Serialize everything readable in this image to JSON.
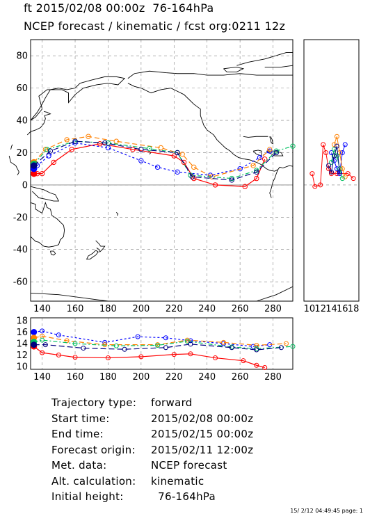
{
  "header": {
    "line1": "ft 2015/02/08 00:00z  76-164hPa",
    "line2": "NCEP forecast / kinematic / fcst org:0211 12z"
  },
  "info": {
    "rows": [
      {
        "label": "Trajectory type:",
        "value": "forward"
      },
      {
        "label": "Start time:",
        "value": "2015/02/08 00:00z"
      },
      {
        "label": "End time:",
        "value": "2015/02/15 00:00z"
      },
      {
        "label": "Forecast origin:",
        "value": "2015/02/11 12:00z"
      },
      {
        "label": "Met. data:",
        "value": "NCEP forecast"
      },
      {
        "label": "Alt. calculation:",
        "value": "kinematic"
      },
      {
        "label": "Initial height:",
        "value": "  76-164hPa"
      }
    ]
  },
  "footer": "15/ 2/12 04:49:45 page: 1",
  "colors": {
    "red": "#ff0000",
    "blue": "#0000ff",
    "orange": "#ff8000",
    "green": "#00c060",
    "navy": "#000080",
    "grid": "#808080"
  },
  "chart_data": [
    {
      "type": "line",
      "panel": "map",
      "xlim": [
        133,
        292
      ],
      "ylim": [
        -72,
        90
      ],
      "xticks": [
        "140",
        "160",
        "180",
        "200",
        "220",
        "240",
        "260",
        "280"
      ],
      "yticks": [
        "-60",
        "-40",
        "-20",
        "0",
        "20",
        "40",
        "60",
        "80"
      ],
      "series": [
        {
          "color": "red",
          "dash": false,
          "points": [
            [
              135,
              7
            ],
            [
              137,
              7
            ],
            [
              140,
              7
            ],
            [
              147,
              14
            ],
            [
              158,
              22
            ],
            [
              175,
              25.5
            ],
            [
              195,
              22
            ],
            [
              220,
              18
            ],
            [
              226,
              14
            ],
            [
              232,
              4
            ],
            [
              245,
              0
            ],
            [
              263,
              -1
            ],
            [
              270,
              4
            ],
            [
              275,
              16
            ]
          ]
        },
        {
          "color": "blue",
          "dash": "3,3",
          "points": [
            [
              135,
              10
            ],
            [
              137,
              12
            ],
            [
              144,
              18
            ],
            [
              160,
              26
            ],
            [
              180,
              23
            ],
            [
              200,
              15
            ],
            [
              210,
              11
            ],
            [
              222,
              8
            ],
            [
              242,
              6
            ],
            [
              260,
              10
            ],
            [
              272,
              17
            ],
            [
              278,
              21
            ]
          ]
        },
        {
          "color": "orange",
          "dash": "7,4",
          "points": [
            [
              135,
              14
            ],
            [
              142,
              22
            ],
            [
              155,
              28
            ],
            [
              168,
              30
            ],
            [
              185,
              27
            ],
            [
              212,
              23
            ],
            [
              225,
              19
            ],
            [
              232,
              11
            ],
            [
              243,
              5
            ],
            [
              268,
              12
            ],
            [
              278,
              22
            ]
          ]
        },
        {
          "color": "green",
          "dash": "6,3,2,3",
          "points": [
            [
              135,
              13
            ],
            [
              143,
              22
            ],
            [
              160,
              27
            ],
            [
              180,
              26
            ],
            [
              205,
              22.5
            ],
            [
              222,
              20
            ],
            [
              230,
              6
            ],
            [
              255,
              4
            ],
            [
              270,
              9
            ],
            [
              282,
              21
            ],
            [
              292,
              24
            ]
          ]
        },
        {
          "color": "navy",
          "dash": "8,4",
          "points": [
            [
              135,
              12
            ],
            [
              145,
              21
            ],
            [
              160,
              27
            ],
            [
              178,
              26
            ],
            [
              200,
              22
            ],
            [
              222,
              20
            ],
            [
              231,
              5
            ],
            [
              255,
              3
            ],
            [
              270,
              8
            ],
            [
              282,
              20
            ]
          ]
        }
      ]
    },
    {
      "type": "scatter",
      "panel": "side",
      "xlim": [
        9,
        19
      ],
      "ylim": [
        -72,
        90
      ],
      "xticks": [
        "10",
        "12",
        "14",
        "16",
        "18"
      ],
      "series": [
        {
          "color": "red",
          "points": [
            [
              10.5,
              7
            ],
            [
              11,
              -1
            ],
            [
              12,
              0
            ],
            [
              12.5,
              25
            ],
            [
              13,
              20
            ],
            [
              13.5,
              10
            ],
            [
              14,
              7
            ],
            [
              15,
              7
            ],
            [
              17,
              7
            ],
            [
              18,
              4
            ]
          ]
        },
        {
          "color": "blue",
          "points": [
            [
              14,
              20
            ],
            [
              14.5,
              15
            ],
            [
              15,
              10
            ],
            [
              15.5,
              7
            ],
            [
              16,
              20
            ],
            [
              16.5,
              25
            ]
          ]
        },
        {
          "color": "orange",
          "points": [
            [
              14.5,
              25
            ],
            [
              15,
              30
            ],
            [
              15.5,
              20
            ],
            [
              16,
              10
            ],
            [
              16.5,
              5
            ]
          ]
        },
        {
          "color": "green",
          "points": [
            [
              14,
              14
            ],
            [
              14.5,
              22
            ],
            [
              15,
              18
            ],
            [
              15.5,
              10
            ],
            [
              16,
              4
            ]
          ]
        },
        {
          "color": "navy",
          "points": [
            [
              13.5,
              12
            ],
            [
              14,
              8
            ],
            [
              14.5,
              18
            ],
            [
              15,
              24
            ],
            [
              15.5,
              8
            ]
          ]
        }
      ]
    },
    {
      "type": "line",
      "panel": "height",
      "xlim": [
        133,
        292
      ],
      "ylim": [
        9.5,
        18.5
      ],
      "xticks": [
        "140",
        "160",
        "180",
        "200",
        "220",
        "240",
        "260",
        "280"
      ],
      "yticks": [
        "10",
        "12",
        "14",
        "16",
        "18"
      ],
      "series": [
        {
          "color": "red",
          "dash": false,
          "points": [
            [
              135,
              13.5
            ],
            [
              140,
              12.4
            ],
            [
              150,
              12.0
            ],
            [
              160,
              11.6
            ],
            [
              180,
              11.5
            ],
            [
              200,
              11.7
            ],
            [
              220,
              12.1
            ],
            [
              230,
              12.2
            ],
            [
              245,
              11.5
            ],
            [
              262,
              11.0
            ],
            [
              270,
              10.2
            ],
            [
              275,
              9.8
            ]
          ]
        },
        {
          "color": "blue",
          "dash": "3,3",
          "points": [
            [
              135,
              16.0
            ],
            [
              140,
              16.2
            ],
            [
              150,
              15.5
            ],
            [
              178,
              14.2
            ],
            [
              198,
              15.2
            ],
            [
              215,
              15.0
            ],
            [
              230,
              14.5
            ],
            [
              250,
              14.0
            ],
            [
              268,
              13.5
            ],
            [
              278,
              13.8
            ]
          ]
        },
        {
          "color": "orange",
          "dash": "7,4",
          "points": [
            [
              135,
              15.0
            ],
            [
              140,
              15.3
            ],
            [
              155,
              14.5
            ],
            [
              178,
              13.8
            ],
            [
              210,
              13.8
            ],
            [
              228,
              14.6
            ],
            [
              250,
              14.2
            ],
            [
              270,
              13.7
            ],
            [
              288,
              14.0
            ]
          ]
        },
        {
          "color": "green",
          "dash": "6,3,2,3",
          "points": [
            [
              135,
              14.3
            ],
            [
              140,
              14.6
            ],
            [
              160,
              14.0
            ],
            [
              185,
              13.6
            ],
            [
              210,
              13.7
            ],
            [
              228,
              14.4
            ],
            [
              255,
              13.4
            ],
            [
              270,
              13.1
            ],
            [
              292,
              13.5
            ]
          ]
        },
        {
          "color": "navy",
          "dash": "8,4",
          "points": [
            [
              135,
              13.8
            ],
            [
              142,
              13.8
            ],
            [
              165,
              13.2
            ],
            [
              190,
              13.0
            ],
            [
              215,
              13.3
            ],
            [
              230,
              13.9
            ],
            [
              255,
              13.3
            ],
            [
              270,
              12.9
            ],
            [
              285,
              13.3
            ]
          ]
        }
      ]
    }
  ]
}
